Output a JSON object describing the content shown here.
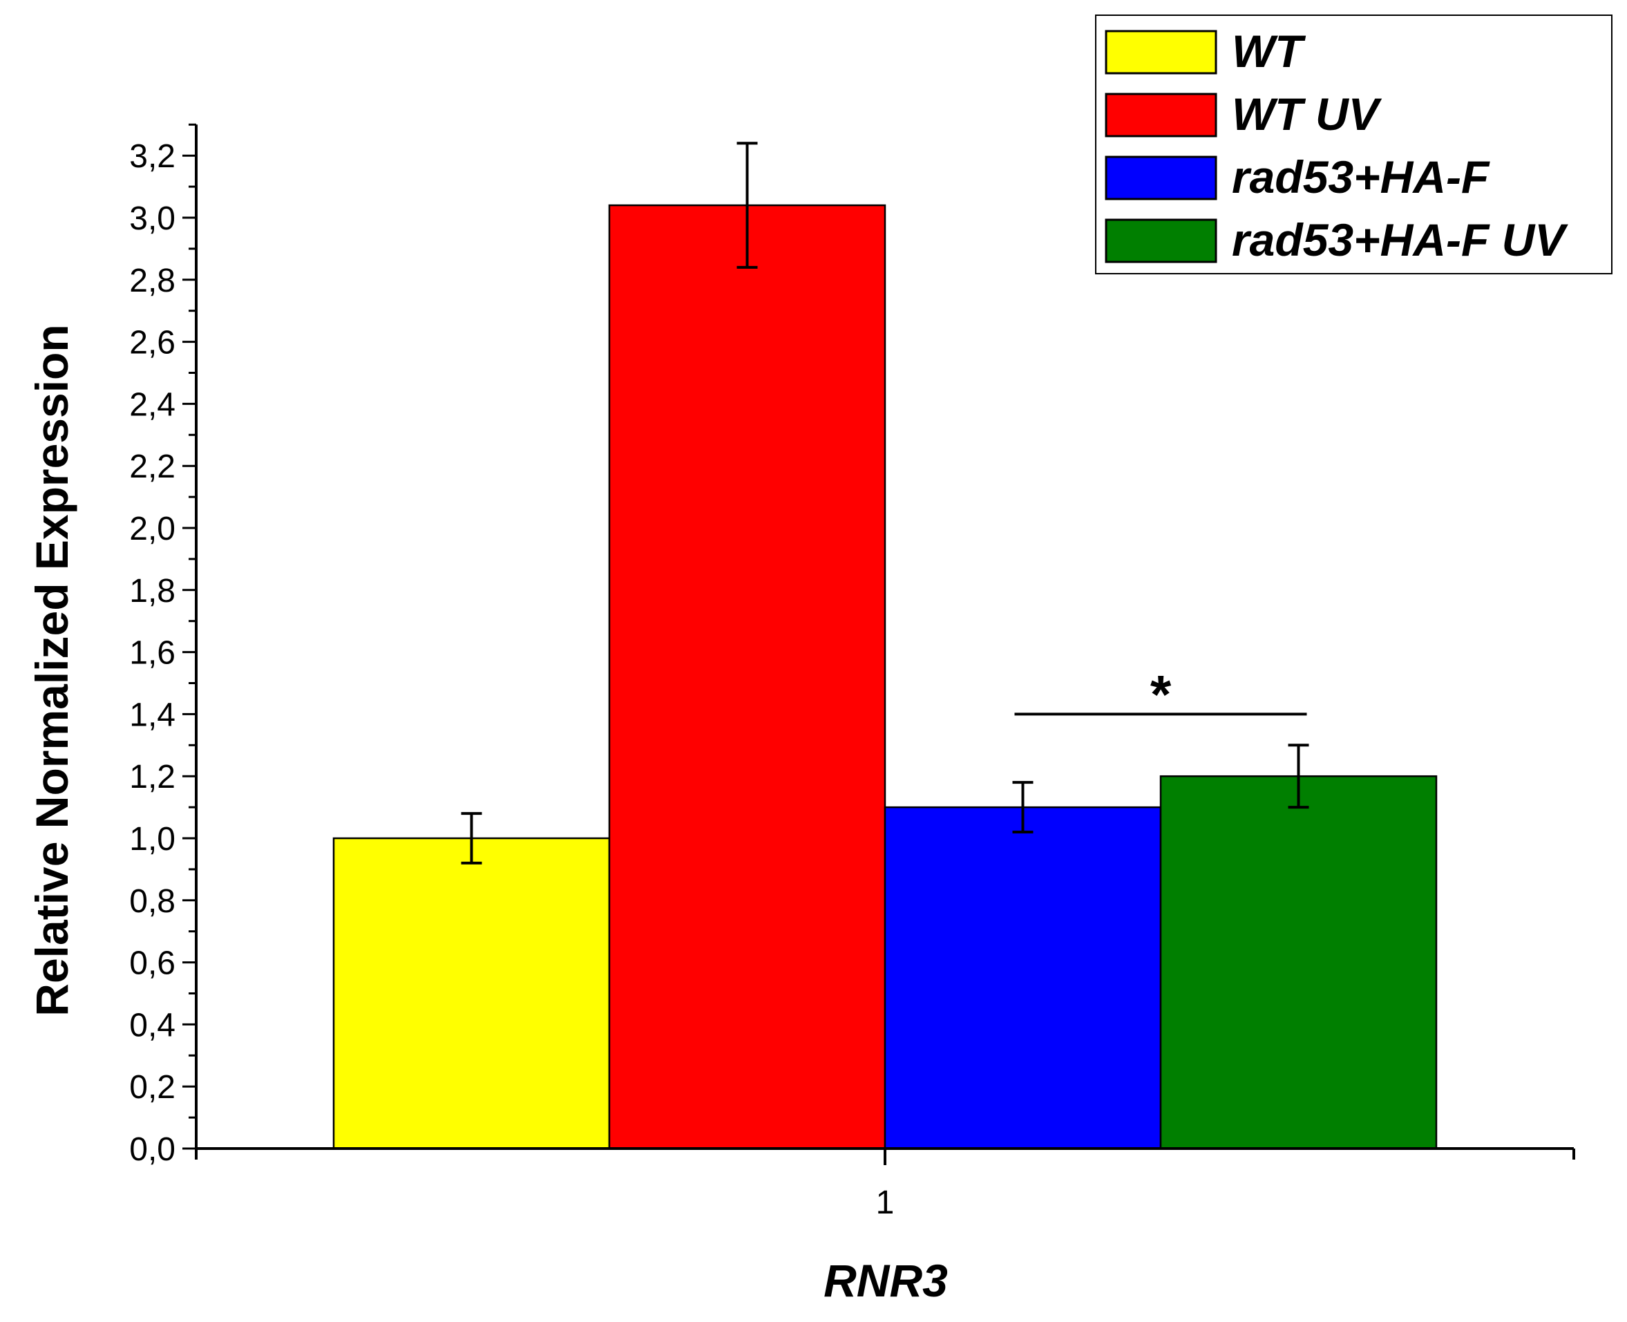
{
  "chart_data": {
    "type": "bar",
    "categories": [
      "1"
    ],
    "series": [
      {
        "name": "WT",
        "values": [
          1.0
        ],
        "error": [
          0.08
        ],
        "color": "#ffff00"
      },
      {
        "name": "WT UV",
        "values": [
          3.04
        ],
        "error": [
          0.2
        ],
        "color": "#ff0000"
      },
      {
        "name": "rad53+HA-F",
        "values": [
          1.1
        ],
        "error": [
          0.08
        ],
        "color": "#0000ff"
      },
      {
        "name": "rad53+HA-F UV",
        "values": [
          1.2
        ],
        "error": [
          0.1
        ],
        "color": "#007f00"
      }
    ],
    "xlabel": "RNR3",
    "ylabel": "Relative Normalized Expression",
    "ylim": [
      0,
      3.3
    ],
    "yticks": [
      "0,0",
      "0,2",
      "0,4",
      "0,6",
      "0,8",
      "1,0",
      "1,2",
      "1,4",
      "1,6",
      "1,8",
      "2,0",
      "2,2",
      "2,4",
      "2,6",
      "2,8",
      "3,0",
      "3,2"
    ],
    "legend": "top-right",
    "grid": false,
    "annotation": {
      "text": "*",
      "from_series": "rad53+HA-F",
      "to_series": "rad53+HA-F UV",
      "y": 1.4
    }
  }
}
